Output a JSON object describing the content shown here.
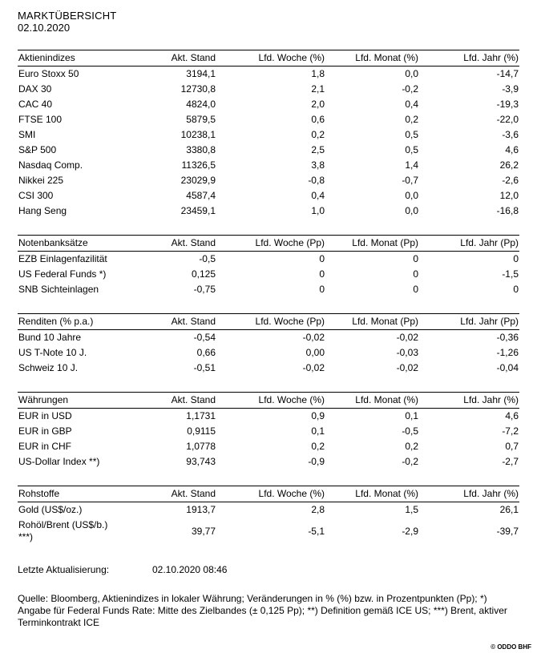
{
  "header": {
    "title": "MARKTÜBERSICHT",
    "date": "02.10.2020"
  },
  "tables": [
    {
      "id": "aktienindizes",
      "section": "Aktienindizes",
      "columns": [
        "Akt. Stand",
        "Lfd. Woche (%)",
        "Lfd. Monat (%)",
        "Lfd. Jahr (%)"
      ],
      "rows": [
        [
          "Euro Stoxx 50",
          "3194,1",
          "1,8",
          "0,0",
          "-14,7"
        ],
        [
          "DAX 30",
          "12730,8",
          "2,1",
          "-0,2",
          "-3,9"
        ],
        [
          "CAC 40",
          "4824,0",
          "2,0",
          "0,4",
          "-19,3"
        ],
        [
          "FTSE 100",
          "5879,5",
          "0,6",
          "0,2",
          "-22,0"
        ],
        [
          "SMI",
          "10238,1",
          "0,2",
          "0,5",
          "-3,6"
        ],
        [
          "S&P 500",
          "3380,8",
          "2,5",
          "0,5",
          "4,6"
        ],
        [
          "Nasdaq Comp.",
          "11326,5",
          "3,8",
          "1,4",
          "26,2"
        ],
        [
          "Nikkei 225",
          "23029,9",
          "-0,8",
          "-0,7",
          "-2,6"
        ],
        [
          "CSI 300",
          "4587,4",
          "0,4",
          "0,0",
          "12,0"
        ],
        [
          "Hang Seng",
          "23459,1",
          "1,0",
          "0,0",
          "-16,8"
        ]
      ]
    },
    {
      "id": "notenbanksaetze",
      "section": "Notenbanksätze",
      "columns": [
        "Akt. Stand",
        "Lfd. Woche (Pp)",
        "Lfd. Monat (Pp)",
        "Lfd. Jahr (Pp)"
      ],
      "rows": [
        [
          "EZB Einlagenfazilität",
          "-0,5",
          "0",
          "0",
          "0"
        ],
        [
          "US Federal Funds *)",
          "0,125",
          "0",
          "0",
          "-1,5"
        ],
        [
          "SNB Sichteinlagen",
          "-0,75",
          "0",
          "0",
          "0"
        ]
      ]
    },
    {
      "id": "renditen",
      "section": "Renditen (% p.a.)",
      "columns": [
        "Akt. Stand",
        "Lfd. Woche (Pp)",
        "Lfd. Monat (Pp)",
        "Lfd. Jahr (Pp)"
      ],
      "rows": [
        [
          "Bund 10 Jahre",
          "-0,54",
          "-0,02",
          "-0,02",
          "-0,36"
        ],
        [
          "US T-Note 10 J.",
          "0,66",
          "0,00",
          "-0,03",
          "-1,26"
        ],
        [
          "Schweiz 10 J.",
          "-0,51",
          "-0,02",
          "-0,02",
          "-0,04"
        ]
      ]
    },
    {
      "id": "waehrungen",
      "section": "Währungen",
      "columns": [
        "Akt. Stand",
        "Lfd. Woche (%)",
        "Lfd. Monat (%)",
        "Lfd. Jahr (%)"
      ],
      "rows": [
        [
          "EUR in USD",
          "1,1731",
          "0,9",
          "0,1",
          "4,6"
        ],
        [
          "EUR in GBP",
          "0,9115",
          "0,1",
          "-0,5",
          "-7,2"
        ],
        [
          "EUR in CHF",
          "1,0778",
          "0,2",
          "0,2",
          "0,7"
        ],
        [
          "US-Dollar Index **)",
          "93,743",
          "-0,9",
          "-0,2",
          "-2,7"
        ]
      ]
    },
    {
      "id": "rohstoffe",
      "section": "Rohstoffe",
      "columns": [
        "Akt. Stand",
        "Lfd. Woche (%)",
        "Lfd. Monat (%)",
        "Lfd. Jahr (%)"
      ],
      "rows": [
        [
          "Gold (US$/oz.)",
          "1913,7",
          "2,8",
          "1,5",
          "26,1"
        ],
        [
          "Rohöl/Brent (US$/b.)\n***)",
          "39,77",
          "-5,1",
          "-2,9",
          "-39,7"
        ]
      ]
    }
  ],
  "footer": {
    "updated_label": "Letzte Aktualisierung:",
    "updated_value": "02.10.2020 08:46",
    "source": "Quelle: Bloomberg, Aktienindizes in lokaler Währung; Veränderungen in % (%) bzw. in Prozentpunkten (Pp); *) Angabe für Federal Funds Rate: Mitte des Zielbandes (± 0,125 Pp); **) Definition gemäß ICE US; ***) Brent, aktiver Terminkontrakt ICE",
    "copyright": "© ODDO BHF"
  }
}
